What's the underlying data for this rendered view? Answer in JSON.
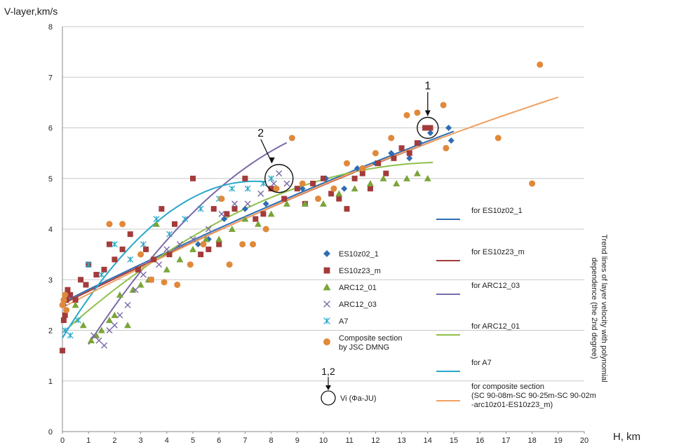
{
  "chart_data": {
    "type": "scatter",
    "ylabel": "V-layer,km/s",
    "xlabel": "H, km",
    "xlim": [
      0,
      20
    ],
    "ylim": [
      0,
      8
    ],
    "x_ticks": [
      "0",
      "1",
      "2",
      "3",
      "4",
      "5",
      "6",
      "7",
      "8",
      "9",
      "10",
      "11",
      "12",
      "13",
      "14",
      "15",
      "16",
      "17",
      "18",
      "19",
      "20"
    ],
    "y_ticks": [
      "0",
      "1",
      "2",
      "3",
      "4",
      "5",
      "6",
      "7",
      "8"
    ],
    "grid": "horizontal",
    "side_note": "Trend lines of layer velocity with polynomial dependence (the 2nd degree)",
    "annotations": [
      {
        "label": "1",
        "x": 14.0,
        "y": 6.0
      },
      {
        "label": "2",
        "x": 8.3,
        "y": 5.0
      }
    ],
    "legend_marker_note": {
      "label": "1,2",
      "text": "Vi  (Фа-JU)"
    },
    "series": [
      {
        "name": "ES10z02_1",
        "marker": "diamond",
        "color": "#2e6db4",
        "x": [
          0.05,
          0.1,
          0.2,
          5.2,
          5.6,
          6.2,
          7.0,
          7.8,
          9.2,
          10.1,
          10.8,
          11.3,
          12.0,
          12.6,
          13.3,
          13.7,
          14.1,
          14.8,
          14.9
        ],
        "y": [
          2.5,
          2.6,
          2.7,
          3.7,
          3.8,
          4.2,
          4.4,
          4.5,
          4.8,
          5.0,
          4.8,
          5.2,
          5.3,
          5.5,
          5.4,
          5.7,
          5.9,
          6.0,
          5.75
        ]
      },
      {
        "name": "ES10z23_m",
        "marker": "square",
        "color": "#a33b3b",
        "x": [
          0.0,
          0.05,
          0.1,
          0.15,
          0.2,
          0.3,
          0.5,
          0.7,
          0.9,
          1.0,
          1.3,
          1.6,
          1.8,
          2.0,
          2.3,
          2.6,
          2.9,
          3.2,
          3.5,
          3.8,
          4.1,
          4.3,
          5.0,
          5.3,
          5.6,
          5.8,
          6.0,
          6.3,
          6.6,
          7.0,
          7.4,
          7.7,
          8.0,
          8.5,
          9.0,
          9.3,
          9.6,
          10.0,
          10.3,
          10.6,
          10.9,
          11.2,
          11.5,
          11.8,
          12.1,
          12.4,
          12.7,
          13.0,
          13.3,
          13.6,
          13.9,
          14.1
        ],
        "y": [
          1.6,
          2.2,
          2.3,
          2.6,
          2.8,
          2.7,
          2.6,
          3.0,
          2.9,
          3.3,
          3.1,
          3.2,
          3.7,
          3.4,
          3.6,
          3.9,
          3.2,
          3.6,
          3.4,
          4.4,
          3.5,
          4.1,
          5.0,
          3.5,
          3.6,
          4.4,
          3.7,
          4.3,
          4.4,
          5.0,
          4.2,
          4.3,
          4.8,
          4.6,
          4.8,
          4.5,
          4.9,
          5.0,
          4.7,
          4.6,
          4.4,
          5.0,
          5.1,
          4.8,
          5.3,
          5.1,
          5.4,
          5.6,
          5.5,
          5.7,
          6.0,
          6.0
        ]
      },
      {
        "name": "ARC12_01",
        "marker": "triangle",
        "color": "#7aa53a",
        "x": [
          0.5,
          0.8,
          1.1,
          1.3,
          1.5,
          1.8,
          2.0,
          2.2,
          2.5,
          2.7,
          3.0,
          3.3,
          3.6,
          4.0,
          4.5,
          5.0,
          5.5,
          6.0,
          6.5,
          7.0,
          7.5,
          8.0,
          8.6,
          9.3,
          10.0,
          10.6,
          11.2,
          11.8,
          12.3,
          12.8,
          13.2,
          13.6,
          14.0
        ],
        "y": [
          2.5,
          2.1,
          1.8,
          1.9,
          2.0,
          2.2,
          2.3,
          2.7,
          2.1,
          2.8,
          2.9,
          3.0,
          4.1,
          3.2,
          3.4,
          3.6,
          3.8,
          3.8,
          4.0,
          4.2,
          4.1,
          4.3,
          4.5,
          4.5,
          4.5,
          4.7,
          4.8,
          4.9,
          5.0,
          4.9,
          5.0,
          5.1,
          5.0
        ]
      },
      {
        "name": "ARC12_03",
        "marker": "x",
        "color": "#7b6aa8",
        "x": [
          1.2,
          1.4,
          1.6,
          1.8,
          2.0,
          2.2,
          2.5,
          2.8,
          3.1,
          3.4,
          3.7,
          4.0,
          4.5,
          5.0,
          5.6,
          6.1,
          6.6,
          7.1,
          7.6,
          8.1,
          8.3,
          8.6
        ],
        "y": [
          1.9,
          1.8,
          1.7,
          2.0,
          2.1,
          2.3,
          2.5,
          2.8,
          3.1,
          3.0,
          3.3,
          3.6,
          3.7,
          3.8,
          4.0,
          4.3,
          4.5,
          4.5,
          4.7,
          4.9,
          5.1,
          4.9
        ]
      },
      {
        "name": "A7",
        "marker": "star",
        "color": "#29a8c9",
        "x": [
          0.1,
          0.3,
          0.6,
          1.0,
          1.5,
          2.0,
          2.6,
          3.1,
          3.6,
          4.1,
          4.7,
          5.3,
          6.0,
          6.5,
          7.1,
          7.7,
          8.0
        ],
        "y": [
          2.0,
          1.9,
          2.2,
          3.3,
          3.1,
          3.7,
          3.4,
          3.7,
          4.2,
          3.9,
          4.2,
          4.4,
          4.6,
          4.8,
          4.8,
          4.9,
          5.0
        ]
      },
      {
        "name": "Composite section\nby JSC DMNG",
        "marker": "circle",
        "color": "#e0893a",
        "x": [
          0.0,
          0.05,
          0.1,
          0.15,
          1.8,
          2.3,
          3.0,
          3.4,
          3.9,
          4.4,
          4.9,
          5.4,
          6.1,
          6.4,
          6.9,
          7.3,
          7.8,
          8.2,
          8.8,
          9.2,
          9.8,
          10.4,
          10.9,
          11.5,
          12.0,
          12.6,
          13.2,
          13.6,
          14.6,
          14.7,
          16.7,
          18.3,
          18.0
        ],
        "y": [
          2.5,
          2.6,
          2.7,
          2.4,
          4.1,
          4.1,
          3.5,
          3.0,
          2.95,
          2.9,
          3.3,
          3.7,
          4.6,
          3.3,
          3.7,
          3.7,
          4.0,
          4.8,
          5.8,
          4.9,
          4.6,
          4.8,
          5.3,
          5.2,
          5.5,
          5.8,
          6.25,
          6.3,
          6.45,
          5.6,
          5.8,
          7.25,
          4.9
        ]
      }
    ],
    "trend_lines": [
      {
        "name": "for ES10z02_1",
        "color": "#2e6db4",
        "a": 2.55,
        "b": 0.257,
        "c": -0.0021,
        "x_range": [
          0,
          15
        ]
      },
      {
        "name": "for ES10z23_m",
        "color": "#a33b3b",
        "a": 2.52,
        "b": 0.255,
        "c": -0.002,
        "x_range": [
          0,
          14.5
        ]
      },
      {
        "name": "for ARC12_03",
        "color": "#7b6aa8",
        "a": 0.9,
        "b": 0.86,
        "c": -0.035,
        "x_range": [
          1,
          8.6
        ]
      },
      {
        "name": "for ARC12_01",
        "color": "#8fc04a",
        "a": 1.95,
        "b": 0.46,
        "c": -0.0157,
        "x_range": [
          0.3,
          14.2
        ]
      },
      {
        "name": "for A7",
        "color": "#29a8c9",
        "a": 1.85,
        "b": 0.84,
        "c": -0.057,
        "x_range": [
          0,
          7.8
        ]
      },
      {
        "name": "for composite section\n(SC 90-08m-SC 90-25m-SC 90-02m\n-arc10z01-ES10z23_m)",
        "color": "#f0a060",
        "a": 2.45,
        "b": 0.27,
        "c": -0.0027,
        "x_range": [
          0,
          19
        ]
      }
    ]
  }
}
